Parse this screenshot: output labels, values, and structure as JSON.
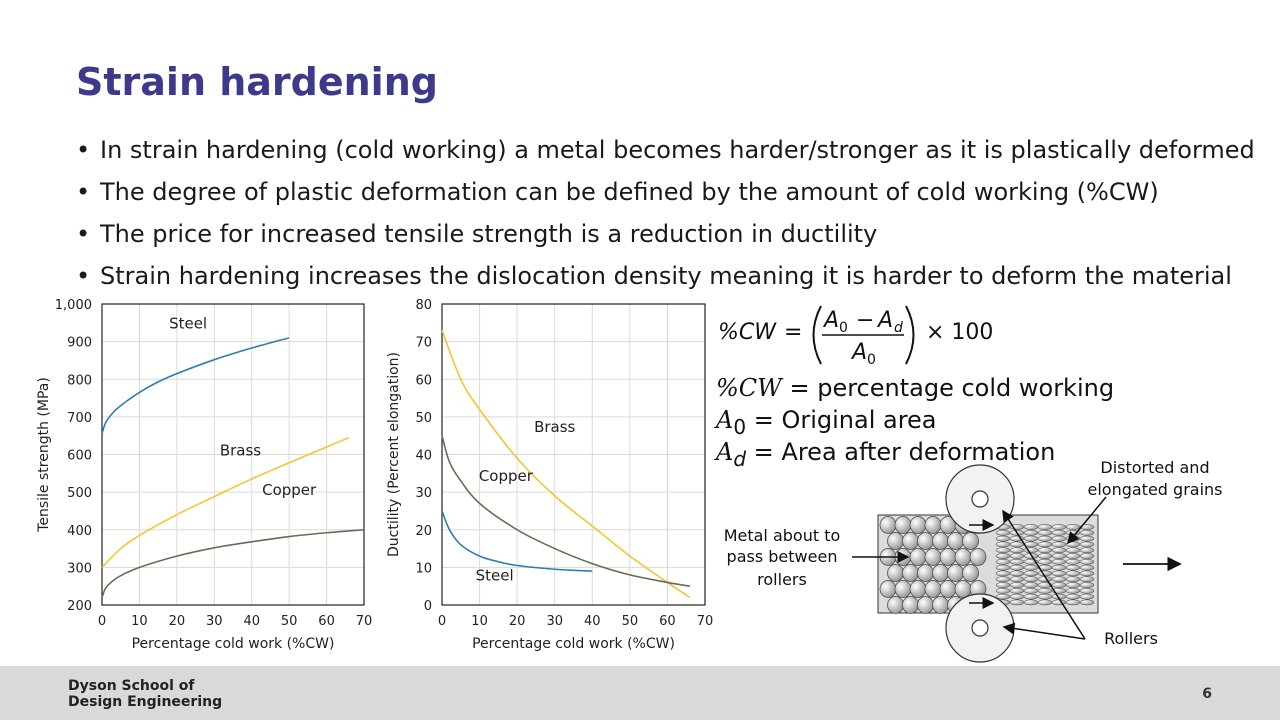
{
  "slide": {
    "title": "Strain hardening",
    "page_number": "6",
    "footer_org_line1": "Dyson School of",
    "footer_org_line2": "Design Engineering"
  },
  "bullets": [
    "In strain hardening (cold working) a metal becomes harder/stronger as it is plastically deformed",
    "The degree of plastic deformation can be defined by the amount of cold working (%CW)",
    "The price for increased tensile strength is a reduction in ductility",
    "Strain hardening increases the dislocation density meaning it is harder to deform the material"
  ],
  "formula": {
    "lhs": "%CW",
    "num_a": "A",
    "num_a_sub": "0",
    "minus": "−",
    "num_b": "A",
    "num_b_sub": "d",
    "den": "A",
    "den_sub": "0",
    "times": "× 100",
    "equals": "="
  },
  "definitions": [
    {
      "symbol": "%CW",
      "sub": "",
      "text": " = percentage cold working"
    },
    {
      "symbol": "A",
      "sub": "0",
      "text": " = Original area"
    },
    {
      "symbol": "A",
      "sub": "d",
      "text": " = Area after deformation"
    }
  ],
  "diagram": {
    "label_metal_1": "Metal about to",
    "label_metal_2": "pass between",
    "label_metal_3": "rollers",
    "label_grains_1": "Distorted and",
    "label_grains_2": "elongated grains",
    "label_rollers": "Rollers"
  },
  "colors": {
    "steel": "#2e7bb6",
    "brass": "#f2c531",
    "copper": "#6b6b55",
    "title": "#3d3a8c"
  },
  "chart_data": [
    {
      "type": "line",
      "xlabel": "Percentage cold work (%CW)",
      "ylabel": "Tensile strength (MPa)",
      "xlim": [
        0,
        70
      ],
      "ylim": [
        200,
        1000
      ],
      "xticks": [
        "0",
        "10",
        "20",
        "30",
        "40",
        "50",
        "60",
        "70"
      ],
      "yticks": [
        "200",
        "300",
        "400",
        "500",
        "600",
        "700",
        "800",
        "900",
        "1,000"
      ],
      "grid": true,
      "series": [
        {
          "name": "Steel",
          "label_at": [
            23,
            935
          ],
          "x": [
            0,
            1,
            3,
            5,
            10,
            15,
            20,
            30,
            40,
            50
          ],
          "y": [
            655,
            685,
            712,
            730,
            765,
            793,
            815,
            852,
            883,
            910
          ]
        },
        {
          "name": "Brass",
          "label_at": [
            37,
            598
          ],
          "x": [
            0,
            5,
            10,
            20,
            30,
            40,
            50,
            60,
            66
          ],
          "y": [
            300,
            350,
            385,
            440,
            488,
            535,
            578,
            620,
            645
          ]
        },
        {
          "name": "Copper",
          "label_at": [
            50,
            493
          ],
          "x": [
            0,
            1,
            3,
            5,
            10,
            20,
            30,
            40,
            50,
            60,
            70
          ],
          "y": [
            220,
            245,
            265,
            278,
            300,
            330,
            352,
            368,
            382,
            392,
            400
          ]
        }
      ]
    },
    {
      "type": "line",
      "xlabel": "Percentage cold work (%CW)",
      "ylabel": "Ductility (Percent elongation)",
      "xlim": [
        0,
        70
      ],
      "ylim": [
        0,
        80
      ],
      "xticks": [
        "0",
        "10",
        "20",
        "30",
        "40",
        "50",
        "60",
        "70"
      ],
      "yticks": [
        "0",
        "10",
        "20",
        "30",
        "40",
        "50",
        "60",
        "70",
        "80"
      ],
      "grid": true,
      "series": [
        {
          "name": "Brass",
          "label_at": [
            30,
            46
          ],
          "x": [
            0,
            5,
            10,
            20,
            30,
            40,
            50,
            60,
            66
          ],
          "y": [
            73,
            60,
            52,
            39,
            29,
            21,
            13,
            6,
            2
          ]
        },
        {
          "name": "Copper",
          "label_at": [
            17,
            33
          ],
          "x": [
            0,
            2,
            5,
            10,
            20,
            30,
            40,
            50,
            60,
            66
          ],
          "y": [
            45,
            38,
            33,
            27,
            20,
            15,
            11,
            8,
            6,
            5
          ]
        },
        {
          "name": "Steel",
          "label_at": [
            14,
            6.5
          ],
          "x": [
            0,
            2,
            5,
            10,
            15,
            20,
            30,
            40
          ],
          "y": [
            25,
            20,
            16,
            13,
            11.5,
            10.5,
            9.5,
            9
          ]
        }
      ]
    }
  ]
}
